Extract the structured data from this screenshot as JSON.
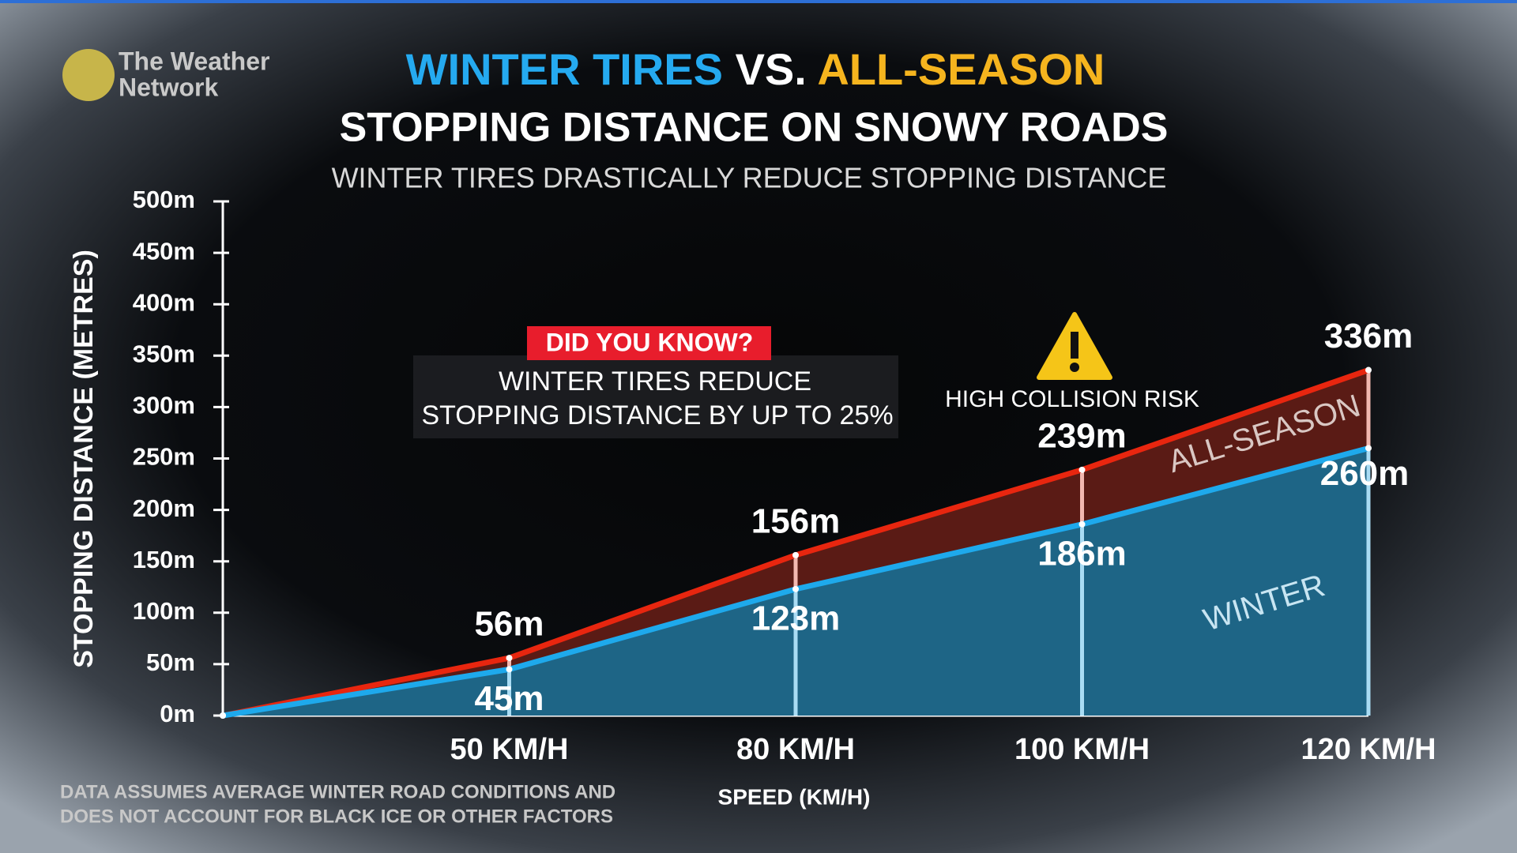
{
  "brand": {
    "line1": "The Weather",
    "line2": "Network"
  },
  "footnote": [
    "DATA ASSUMES AVERAGE WINTER ROAD CONDITIONS AND",
    "DOES NOT ACCOUNT FOR BLACK ICE OR OTHER FACTORS"
  ],
  "chart_data": {
    "type": "area",
    "title_parts": [
      "WINTER TIRES",
      "VS.",
      "ALL-SEASON"
    ],
    "title": "STOPPING DISTANCE ON SNOWY ROADS",
    "subtitle": "WINTER TIRES DRASTICALLY REDUCE STOPPING DISTANCE",
    "y_label": "STOPPING DISTANCE (METRES)",
    "x_label": "SPEED (KM/H)",
    "callout": {
      "heading": "DID YOU KNOW?",
      "lines": [
        "WINTER TIRES REDUCE",
        "STOPPING DISTANCE BY UP TO 25%"
      ]
    },
    "warning": "HIGH COLLISION RISK",
    "categories": [
      null,
      "50 KM/H",
      "80 KM/H",
      "100 KM/H",
      "120 KM/H"
    ],
    "series": [
      {
        "name": "ALL-SEASON",
        "color": "#e8260f",
        "fill": "#5a1b15",
        "title_color": "#f5b41e",
        "values": [
          0,
          56,
          156,
          239,
          336
        ],
        "value_labels": [
          null,
          "56m",
          "156m",
          "239m",
          "336m"
        ]
      },
      {
        "name": "WINTER",
        "color": "#1ea9ec",
        "fill": "#1e6586",
        "title_color": "#25aaf0",
        "values": [
          0,
          45,
          123,
          186,
          260
        ],
        "value_labels": [
          null,
          "45m",
          "123m",
          "186m",
          "260m"
        ]
      }
    ],
    "ylim": [
      0,
      500
    ],
    "yticks": [
      {
        "value": 0,
        "label": "0m"
      },
      {
        "value": 50,
        "label": "50m"
      },
      {
        "value": 100,
        "label": "100m"
      },
      {
        "value": 150,
        "label": "150m"
      },
      {
        "value": 200,
        "label": "200m"
      },
      {
        "value": 250,
        "label": "250m"
      },
      {
        "value": 300,
        "label": "300m"
      },
      {
        "value": 350,
        "label": "350m"
      },
      {
        "value": 400,
        "label": "400m"
      },
      {
        "value": 450,
        "label": "450m"
      },
      {
        "value": 500,
        "label": "500m"
      }
    ],
    "grid": false
  }
}
